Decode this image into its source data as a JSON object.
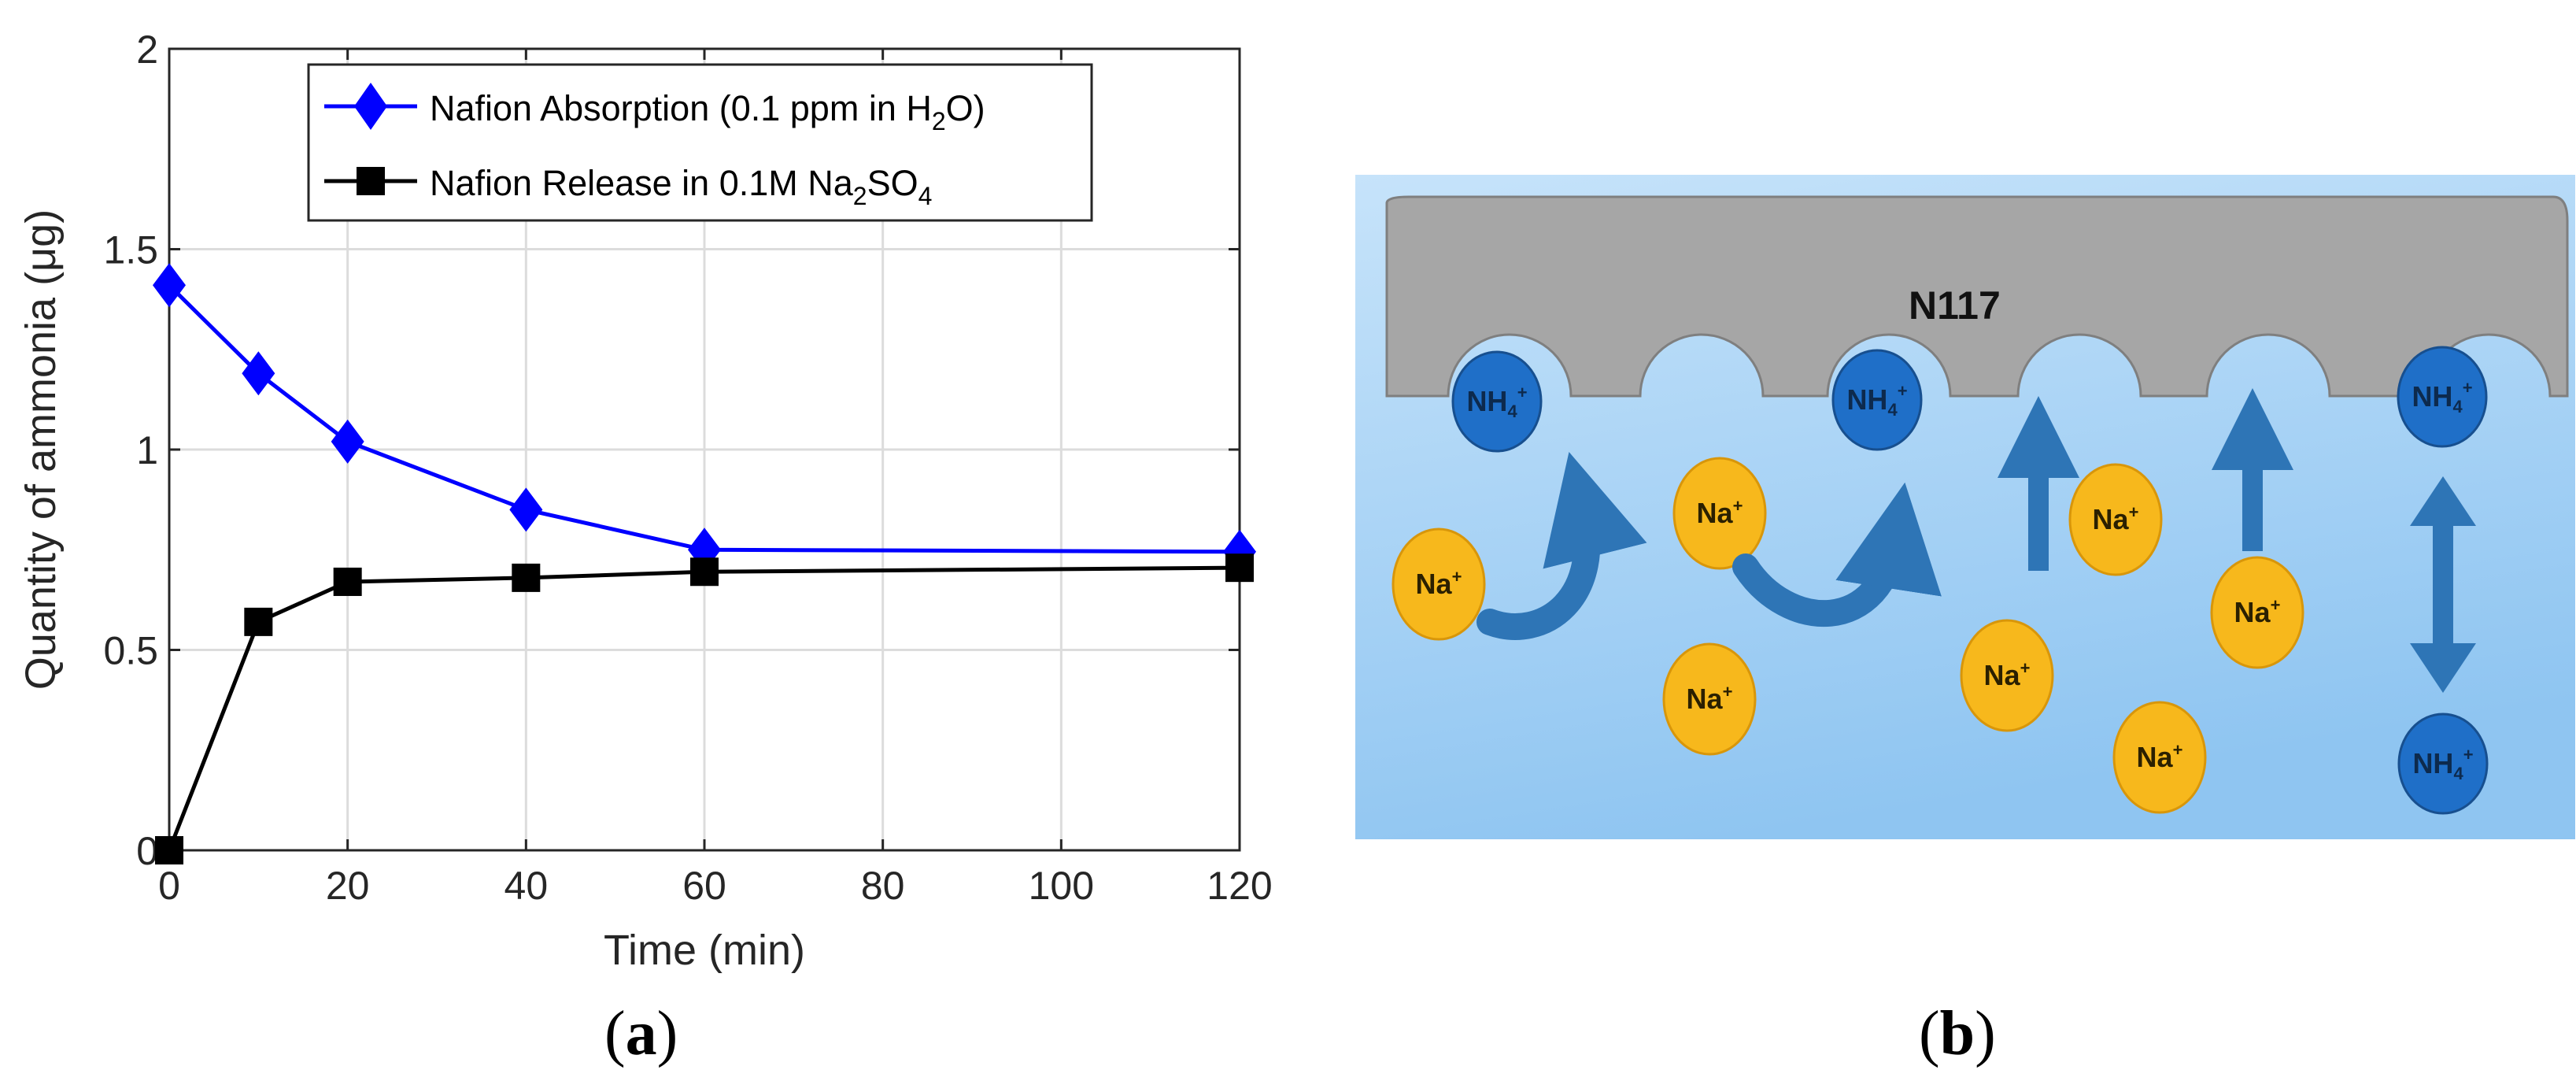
{
  "chart_data": {
    "type": "line",
    "title": "",
    "xlabel": "Time (min)",
    "ylabel": "Quantity of ammonia  (μg)",
    "xlim": [
      0,
      120
    ],
    "ylim": [
      0,
      2
    ],
    "xticks": [
      0,
      20,
      40,
      60,
      80,
      100,
      120
    ],
    "yticks": [
      0,
      0.5,
      1,
      1.5,
      2
    ],
    "xtick_labels": [
      "0",
      "20",
      "40",
      "60",
      "80",
      "100",
      "120"
    ],
    "ytick_labels": [
      "0",
      "0.5",
      "1",
      "1.5",
      "2"
    ],
    "grid": true,
    "legend_position": "top-center",
    "series": [
      {
        "name": "Nafion Absorption (0.1 ppm in H2O)",
        "name_parts": [
          "Nafion Absorption (0.1 ppm in H",
          "2",
          "O)"
        ],
        "marker": "diamond",
        "color": "#0000ff",
        "x": [
          0,
          10,
          20,
          40,
          60,
          120
        ],
        "y": [
          1.41,
          1.19,
          1.02,
          0.85,
          0.75,
          0.745
        ]
      },
      {
        "name": "Nafion Release in 0.1M Na2SO4",
        "name_parts": [
          "Nafion Release in 0.1M Na",
          "2",
          "SO",
          "4"
        ],
        "marker": "square",
        "color": "#000000",
        "x": [
          0,
          10,
          20,
          40,
          60,
          120
        ],
        "y": [
          0.0,
          0.57,
          0.67,
          0.68,
          0.695,
          0.705
        ]
      }
    ]
  },
  "diagram": {
    "membrane_label": "N117",
    "ammonium_label": "NH",
    "ammonium_sub": "4",
    "ammonium_sup": "+",
    "sodium_label": "Na",
    "sodium_sup": "+",
    "colors": {
      "solution_top": "#bfe0f9",
      "solution_bottom": "#8ec6f2",
      "membrane": "#a6a6a6",
      "ammonium": "#1f6fc8",
      "sodium": "#f7b81c",
      "arrow": "#2e75b6"
    }
  },
  "panel_labels": {
    "a_open": "(",
    "a_letter": "a",
    "a_close": ")",
    "b_open": "(",
    "b_letter": "b",
    "b_close": ")"
  }
}
